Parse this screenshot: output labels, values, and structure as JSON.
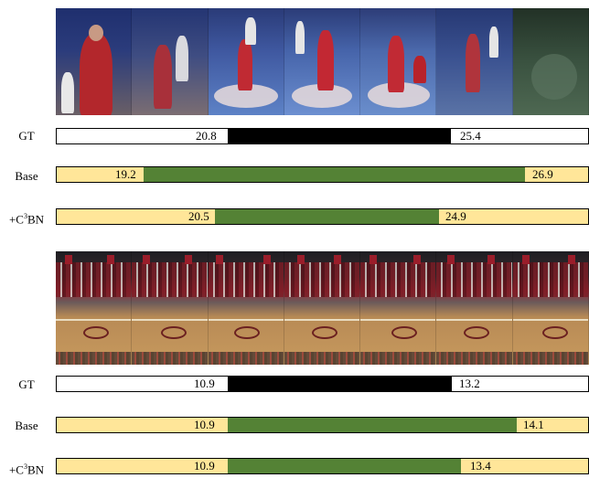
{
  "labels": {
    "gt": "GT",
    "base": "Base",
    "c3bn_prefix": "+C",
    "c3bn_sup": "3",
    "c3bn_suffix": "BN"
  },
  "colors": {
    "gt_segment": "#000000",
    "base_segment": "#548235",
    "c3bn_segment": "#548235",
    "background_fill": "#ffe699"
  },
  "examples": [
    {
      "gt": {
        "start": "20.8",
        "end": "25.4"
      },
      "base": {
        "start": "19.2",
        "end": "26.9"
      },
      "c3bn": {
        "start": "20.5",
        "end": "24.9"
      }
    },
    {
      "gt": {
        "start": "10.9",
        "end": "13.2"
      },
      "base": {
        "start": "10.9",
        "end": "14.1"
      },
      "c3bn": {
        "start": "10.9",
        "end": "13.4"
      }
    }
  ]
}
